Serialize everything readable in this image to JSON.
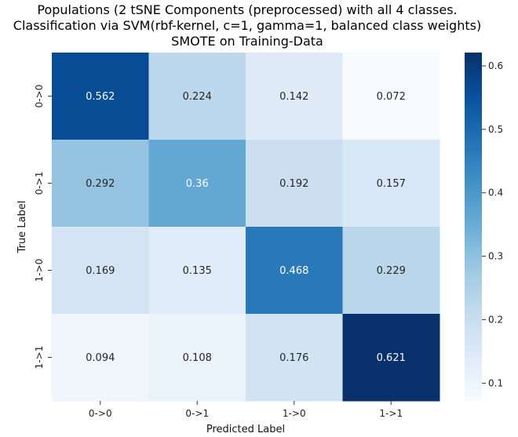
{
  "chart_data": {
    "type": "heatmap",
    "title_lines": [
      "Populations (2 tSNE Components (preprocessed) with all 4 classes.",
      "Classification via SVM(rbf-kernel, c=1, gamma=1, balanced class weights)",
      "SMOTE on Training-Data"
    ],
    "xlabel": "Predicted Label",
    "ylabel": "True Label",
    "x_categories": [
      "0->0",
      "0->1",
      "1->0",
      "1->1"
    ],
    "y_categories": [
      "0->0",
      "0->1",
      "1->0",
      "1->1"
    ],
    "values": [
      [
        0.562,
        0.224,
        0.142,
        0.072
      ],
      [
        0.292,
        0.36,
        0.192,
        0.157
      ],
      [
        0.169,
        0.135,
        0.468,
        0.229
      ],
      [
        0.094,
        0.108,
        0.176,
        0.621
      ]
    ],
    "value_labels": [
      [
        "0.562",
        "0.224",
        "0.142",
        "0.072"
      ],
      [
        "0.292",
        "0.36",
        "0.192",
        "0.157"
      ],
      [
        "0.169",
        "0.135",
        "0.468",
        "0.229"
      ],
      [
        "0.094",
        "0.108",
        "0.176",
        "0.621"
      ]
    ],
    "colormap": "Blues",
    "color_range": [
      0.072,
      0.621
    ],
    "colorbar_ticks": [
      "0.1",
      "0.2",
      "0.3",
      "0.4",
      "0.5",
      "0.6"
    ],
    "colorbar_tick_values": [
      0.1,
      0.2,
      0.3,
      0.4,
      0.5,
      0.6
    ]
  }
}
